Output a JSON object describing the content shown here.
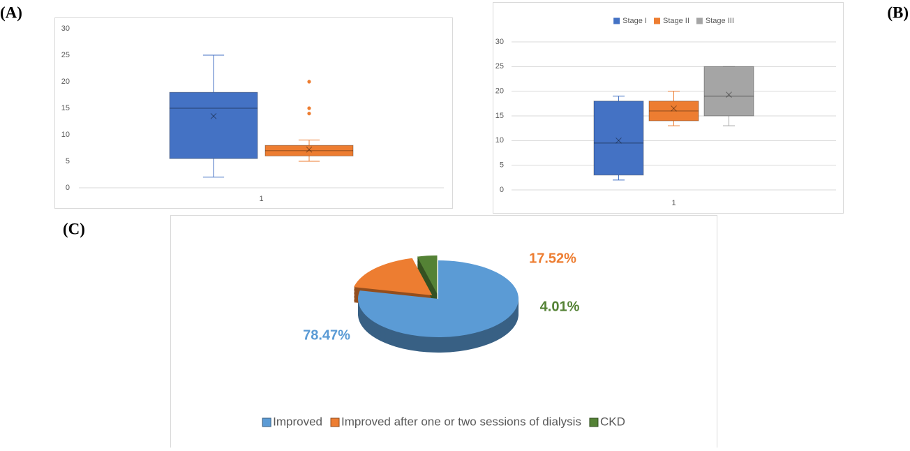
{
  "chart_data": [
    {
      "type": "box",
      "panel_label": "(A)",
      "categories": [
        "1"
      ],
      "series": [
        {
          "color": "#4472c4",
          "min": 2,
          "q1": 5.5,
          "median": 15,
          "q3": 18,
          "max": 25,
          "mean": 13.5
        },
        {
          "color": "#ed7d31",
          "min": 5,
          "q1": 6,
          "median": 7,
          "q3": 8,
          "max": 9,
          "mean": 7.2,
          "outliers": [
            14,
            15,
            20
          ]
        }
      ],
      "ylim": [
        0,
        30
      ],
      "yticks": [
        0,
        5,
        10,
        15,
        20,
        25,
        30
      ],
      "grid": false
    },
    {
      "type": "box",
      "panel_label": "(B)",
      "categories": [
        "1"
      ],
      "series": [
        {
          "name": "Stage I",
          "color": "#4472c4",
          "min": 2,
          "q1": 3,
          "median": 9.5,
          "q3": 18,
          "max": 19,
          "mean": 10
        },
        {
          "name": "Stage II",
          "color": "#ed7d31",
          "min": 13,
          "q1": 14,
          "median": 16,
          "q3": 18,
          "max": 20,
          "mean": 16.5
        },
        {
          "name": "Stage III",
          "color": "#a5a5a5",
          "min": 13,
          "q1": 15,
          "median": 19,
          "q3": 25,
          "max": 25,
          "mean": 19.3
        }
      ],
      "ylim": [
        0,
        30
      ],
      "yticks": [
        0,
        5,
        10,
        15,
        20,
        25,
        30
      ],
      "grid": true,
      "legend": "top"
    },
    {
      "type": "pie",
      "panel_label": "(C)",
      "categories": [
        "Improved",
        "Improved after one or two sessions of dialysis",
        "CKD"
      ],
      "values": [
        78.47,
        17.52,
        4.01
      ],
      "value_labels": [
        "78.47%",
        "17.52%",
        "4.01%"
      ],
      "colors": [
        "#5b9bd5",
        "#ed7d31",
        "#548235"
      ],
      "legend": "bottom"
    }
  ]
}
